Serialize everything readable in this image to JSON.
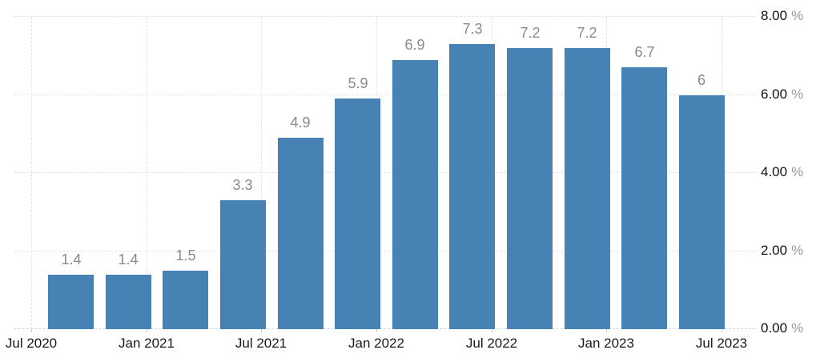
{
  "chart_data": {
    "type": "bar",
    "title": "",
    "xlabel": "",
    "ylabel": "",
    "values": [
      1.4,
      1.4,
      1.5,
      3.3,
      4.9,
      5.9,
      6.9,
      7.3,
      7.2,
      7.2,
      6.7,
      6
    ],
    "bar_labels": [
      "1.4",
      "1.4",
      "1.5",
      "3.3",
      "4.9",
      "5.9",
      "6.9",
      "7.3",
      "7.2",
      "7.2",
      "6.7",
      "6"
    ],
    "x_tick_labels": [
      "Jul 2020",
      "Jan 2021",
      "Jul 2021",
      "Jan 2022",
      "Jul 2022",
      "Jan 2023",
      "Jul 2023"
    ],
    "y_ticks": [
      0,
      2,
      4,
      6,
      8
    ],
    "y_tick_numbers": [
      "0.00",
      "2.00",
      "4.00",
      "6.00",
      "8.00"
    ],
    "y_unit": "%",
    "ylim": [
      0,
      8
    ],
    "grid": true,
    "legend": "none",
    "y_axis_side": "right",
    "colors": {
      "bar": "#4682b4",
      "bar_value_label": "#8a8a8a",
      "x_tick_label": "#1a1a1a",
      "y_tick_number": "#111111",
      "y_unit": "#9a9a9a",
      "gridline": "#e4e4e4",
      "axis_line": "#d6d6d6",
      "background": "#ffffff"
    }
  }
}
